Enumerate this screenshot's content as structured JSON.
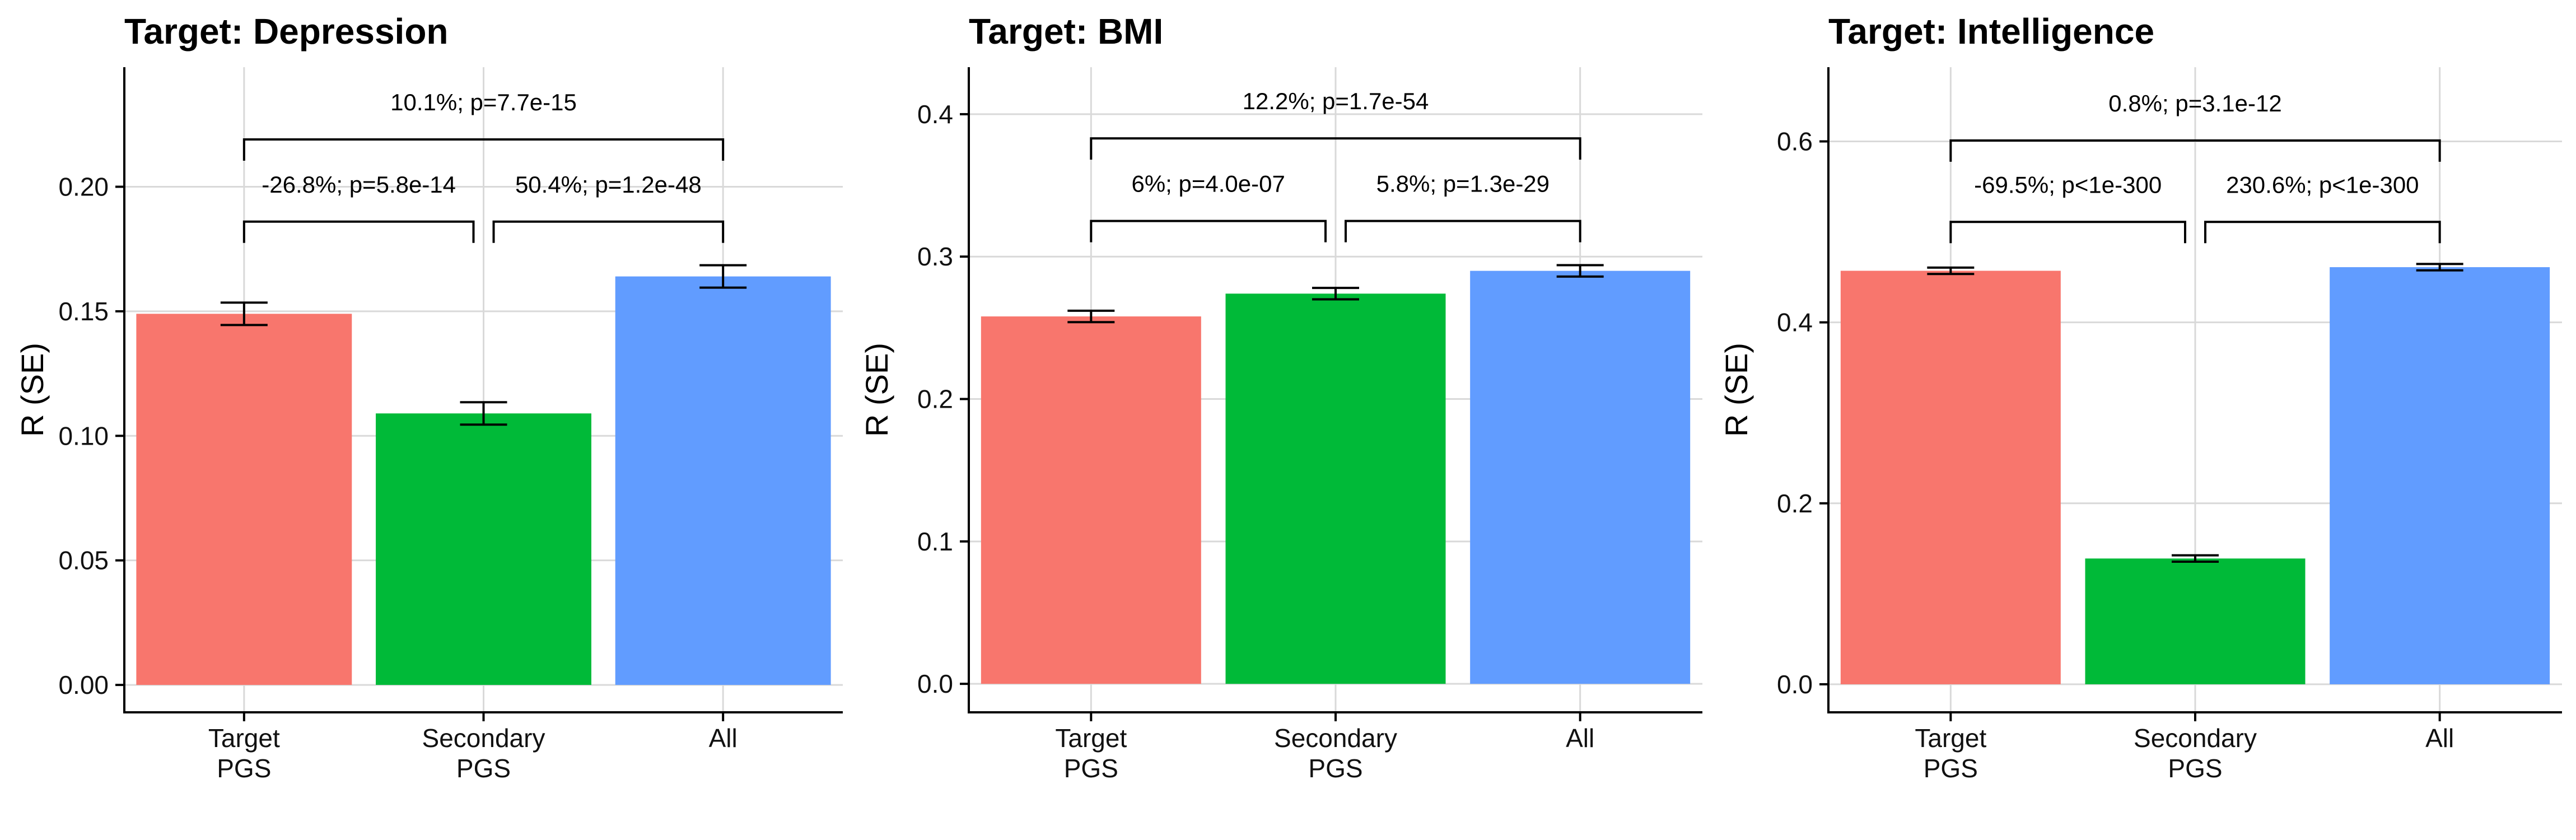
{
  "chart_data": [
    {
      "type": "bar",
      "title": "Target: Depression",
      "xlabel": "",
      "ylabel": "R (SE)",
      "categories": [
        "Target\nPGS",
        "Secondary\nPGS",
        "All"
      ],
      "values": [
        0.149,
        0.109,
        0.164
      ],
      "se": [
        0.0045,
        0.0045,
        0.0045
      ],
      "colors": [
        "#F8766D",
        "#00BA38",
        "#619CFF"
      ],
      "ylim": [
        -0.011,
        0.248
      ],
      "yticks": [
        0.0,
        0.05,
        0.1,
        0.15,
        0.2
      ],
      "ytick_labels": [
        "0.00",
        "0.05",
        "0.10",
        "0.15",
        "0.20"
      ],
      "grid": true,
      "legend": "none",
      "comparisons": [
        {
          "from": 0,
          "to": 1,
          "y": 0.186,
          "label": "-26.8%; p=5.8e-14"
        },
        {
          "from": 1,
          "to": 2,
          "y": 0.186,
          "label": "50.4%; p=1.2e-48"
        },
        {
          "from": 0,
          "to": 2,
          "y": 0.219,
          "label": "10.1%; p=7.7e-15"
        }
      ]
    },
    {
      "type": "bar",
      "title": "Target: BMI",
      "xlabel": "",
      "ylabel": "R (SE)",
      "categories": [
        "Target\nPGS",
        "Secondary\nPGS",
        "All"
      ],
      "values": [
        0.258,
        0.274,
        0.29
      ],
      "se": [
        0.004,
        0.004,
        0.004
      ],
      "colors": [
        "#F8766D",
        "#00BA38",
        "#619CFF"
      ],
      "ylim": [
        -0.02,
        0.433
      ],
      "yticks": [
        0.0,
        0.1,
        0.2,
        0.3,
        0.4
      ],
      "ytick_labels": [
        "0.0",
        "0.1",
        "0.2",
        "0.3",
        "0.4"
      ],
      "grid": true,
      "legend": "none",
      "comparisons": [
        {
          "from": 0,
          "to": 1,
          "y": 0.325,
          "label": "6%; p=4.0e-07"
        },
        {
          "from": 1,
          "to": 2,
          "y": 0.325,
          "label": "5.8%; p=1.3e-29"
        },
        {
          "from": 0,
          "to": 2,
          "y": 0.383,
          "label": "12.2%; p=1.7e-54"
        }
      ]
    },
    {
      "type": "bar",
      "title": "Target: Intelligence",
      "xlabel": "",
      "ylabel": "R (SE)",
      "categories": [
        "Target\nPGS",
        "Secondary\nPGS",
        "All"
      ],
      "values": [
        0.457,
        0.139,
        0.461
      ],
      "se": [
        0.0035,
        0.0035,
        0.0035
      ],
      "colors": [
        "#F8766D",
        "#00BA38",
        "#619CFF"
      ],
      "ylim": [
        -0.031,
        0.682
      ],
      "yticks": [
        0.0,
        0.2,
        0.4,
        0.6
      ],
      "ytick_labels": [
        "0.0",
        "0.2",
        "0.4",
        "0.6"
      ],
      "grid": true,
      "legend": "none",
      "comparisons": [
        {
          "from": 0,
          "to": 1,
          "y": 0.511,
          "label": "-69.5%; p<1e-300"
        },
        {
          "from": 1,
          "to": 2,
          "y": 0.511,
          "label": "230.6%; p<1e-300"
        },
        {
          "from": 0,
          "to": 2,
          "y": 0.601,
          "label": "0.8%; p=3.1e-12"
        }
      ]
    }
  ]
}
